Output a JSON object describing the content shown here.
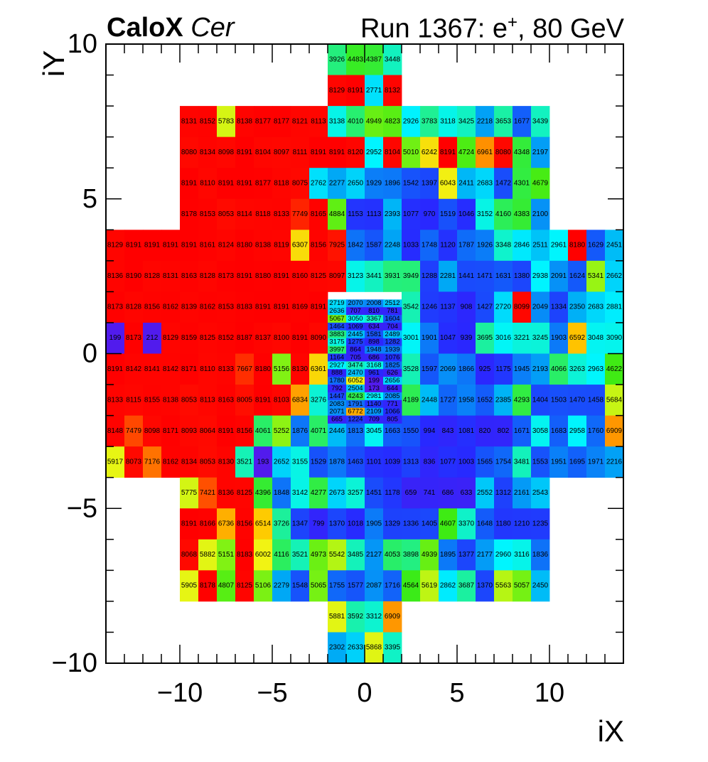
{
  "chart_data": {
    "type": "heatmap",
    "title_bold": "CaloX",
    "title_italic": "Cer",
    "run_label": "Run 1367: e",
    "run_sup": "+",
    "run_energy": ", 80 GeV",
    "xlabel": "iX",
    "ylabel": "iY",
    "xlim": [
      -14,
      14
    ],
    "ylim": [
      -10,
      10
    ],
    "xticks": [
      -10,
      -5,
      0,
      5,
      10
    ],
    "yticks": [
      -10,
      -5,
      0,
      5,
      10
    ],
    "xtick_labels": [
      "−10",
      "−5",
      "0",
      "5",
      "10"
    ],
    "ytick_labels": [
      "−10",
      "−5",
      "0",
      "5",
      "10"
    ],
    "zmax": 8191,
    "grid": false,
    "legend": "none",
    "colormap": "rainbow (blue → cyan → green → yellow → red)",
    "rows": [
      {
        "y": 9,
        "x0": -2,
        "dx": 1,
        "dy": 1,
        "values": [
          3926,
          4483,
          4387,
          3448
        ]
      },
      {
        "y": 8,
        "x0": -2,
        "dx": 1,
        "dy": 1,
        "values": [
          8129,
          8191,
          2771,
          8132
        ]
      },
      {
        "y": 7,
        "x0": -10,
        "dx": 1,
        "dy": 1,
        "values": [
          8131,
          8152,
          5783,
          8138,
          8177,
          8177,
          8121,
          8113,
          3138,
          4010,
          4949,
          4823,
          2926,
          3783,
          3118,
          3425,
          2218,
          3653,
          1677,
          3439
        ]
      },
      {
        "y": 6,
        "x0": -10,
        "dx": 1,
        "dy": 1,
        "values": [
          8080,
          8134,
          8098,
          8191,
          8104,
          8097,
          8111,
          8191,
          8191,
          8120,
          2952,
          8104,
          5010,
          6242,
          8191,
          4724,
          6961,
          8080,
          4348,
          2197
        ]
      },
      {
        "y": 5,
        "x0": -10,
        "dx": 1,
        "dy": 1,
        "values": [
          8191,
          8110,
          8191,
          8191,
          8177,
          8118,
          8075,
          2762,
          2277,
          2650,
          1929,
          1896,
          1542,
          1397,
          6043,
          2411,
          2683,
          1472,
          4301,
          4679
        ]
      },
      {
        "y": 4,
        "x0": -10,
        "dx": 1,
        "dy": 1,
        "values": [
          8178,
          8153,
          8053,
          8114,
          8118,
          8133,
          7749,
          8165,
          4884,
          1153,
          1113,
          2393,
          1077,
          970,
          1519,
          1046,
          3152,
          4160,
          4383,
          2100
        ]
      },
      {
        "y": 3,
        "x0": -14,
        "dx": 1,
        "dy": 1,
        "values": [
          8129,
          8191,
          8191,
          8191,
          8191,
          8161,
          8124,
          8180,
          8138,
          8119,
          6307,
          8156,
          7925,
          1842,
          1587,
          2248,
          1033,
          1748,
          1120,
          1787,
          1926,
          3348,
          2846,
          2511,
          2961,
          8180,
          1629,
          2451
        ]
      },
      {
        "y": 2,
        "x0": -14,
        "dx": 1,
        "dy": 1,
        "values": [
          8136,
          8190,
          8128,
          8131,
          8163,
          8128,
          8173,
          8191,
          8180,
          8191,
          8160,
          8125,
          8097,
          3123,
          3441,
          3931,
          3949,
          1288,
          2281,
          1441,
          1471,
          1631,
          1380,
          2938,
          2091,
          1624,
          5341,
          2662
        ]
      },
      {
        "y": 1,
        "x0": -14,
        "dx": 1,
        "dy": 1,
        "values": [
          8173,
          8128,
          8156,
          8162,
          8139,
          8162,
          8153,
          8183,
          8191,
          8191,
          8169,
          8191
        ]
      },
      {
        "y": 1,
        "x0": 2,
        "dx": 1,
        "dy": 1,
        "values": [
          3542,
          1246,
          1137,
          908,
          1427,
          2720,
          8099,
          2049,
          1334,
          2350,
          2683,
          2881
        ]
      },
      {
        "y": 0,
        "x0": -14,
        "dx": 1,
        "dy": 1,
        "values": [
          199,
          8173,
          212,
          8129,
          8159,
          8125,
          8152,
          8187,
          8137,
          8100,
          8191,
          8090
        ]
      },
      {
        "y": 0,
        "x0": 2,
        "dx": 1,
        "dy": 1,
        "values": [
          3001,
          1901,
          1047,
          939,
          3695,
          3016,
          3221,
          3245,
          1903,
          6592,
          3048,
          3090
        ]
      },
      {
        "y": -1,
        "x0": -14,
        "dx": 1,
        "dy": 1,
        "values": [
          8191,
          8142,
          8141,
          8142,
          8171,
          8110,
          8133,
          7667,
          8180,
          5156,
          8130,
          6361
        ]
      },
      {
        "y": -1,
        "x0": 2,
        "dx": 1,
        "dy": 1,
        "values": [
          3528,
          1597,
          2069,
          1866,
          925,
          1175,
          1945,
          2193,
          4066,
          3263,
          2963,
          4622
        ]
      },
      {
        "y": -2,
        "x0": -14,
        "dx": 1,
        "dy": 1,
        "values": [
          8133,
          8115,
          8155,
          8138,
          8053,
          8113,
          8163,
          8005,
          8191,
          8103,
          6834,
          3276
        ]
      },
      {
        "y": -2,
        "x0": 2,
        "dx": 1,
        "dy": 1,
        "values": [
          4189,
          2448,
          1727,
          1958,
          1652,
          2385,
          4293,
          1404,
          1503,
          1470,
          1458,
          5684
        ]
      },
      {
        "y": -3,
        "x0": -14,
        "dx": 1,
        "dy": 1,
        "values": [
          8148,
          7479,
          8098,
          8171,
          8093,
          8064,
          8191,
          8156,
          4061,
          5252,
          1876,
          4071,
          2446,
          1813,
          3045,
          1663,
          1550,
          994,
          843,
          1081,
          820,
          802,
          1671,
          3058,
          1683,
          2958,
          1760,
          6909
        ]
      },
      {
        "y": -4,
        "x0": -14,
        "dx": 1,
        "dy": 1,
        "values": [
          5917,
          8073,
          7176,
          8162,
          8134,
          8053,
          8130,
          3521,
          193,
          2652,
          3155,
          1529,
          1878,
          1463,
          1101,
          1039,
          1313,
          836,
          1077,
          1003,
          1565,
          1754,
          3481,
          1553,
          1951,
          1695,
          1971,
          2216
        ]
      },
      {
        "y": -5,
        "x0": -10,
        "dx": 1,
        "dy": 1,
        "values": [
          5775,
          7421,
          8136,
          8125,
          4396,
          1848,
          3142,
          4277,
          2673,
          3257,
          1451,
          1178,
          659,
          741,
          686,
          633,
          2552,
          1312,
          2161,
          2543
        ]
      },
      {
        "y": -6,
        "x0": -10,
        "dx": 1,
        "dy": 1,
        "values": [
          8191,
          8166,
          6736,
          8156,
          6514,
          3726,
          1347,
          799,
          1370,
          1018,
          1905,
          1329,
          1336,
          1405,
          4607,
          3370,
          1648,
          1180,
          1210,
          1235
        ]
      },
      {
        "y": -7,
        "x0": -10,
        "dx": 1,
        "dy": 1,
        "values": [
          8068,
          5882,
          5151,
          8183,
          6002,
          4116,
          3521,
          4973,
          5542,
          3485,
          2127,
          4053,
          3898,
          4939,
          1895,
          1377,
          2177,
          2960,
          3116,
          1836
        ]
      },
      {
        "y": -8,
        "x0": -10,
        "dx": 1,
        "dy": 1,
        "values": [
          5905,
          8178,
          4807,
          8125,
          5106,
          2279,
          1548,
          5065,
          1755,
          1577,
          2087,
          1716,
          4564,
          5619,
          2862,
          3687,
          1370,
          5563,
          5057,
          2450
        ]
      },
      {
        "y": -9,
        "x0": -2,
        "dx": 1,
        "dy": 1,
        "values": [
          5881,
          3592,
          3312,
          6909
        ]
      },
      {
        "y": -10,
        "x0": -2,
        "dx": 1,
        "dy": 1,
        "values": [
          2302,
          2633,
          5868,
          3395
        ]
      },
      {
        "y": 1.5,
        "x0": -2,
        "dx": 1,
        "dy": 0.25,
        "values": [
          2719,
          2070,
          2008,
          2512
        ]
      },
      {
        "y": 1.25,
        "x0": -2,
        "dx": 1,
        "dy": 0.25,
        "values": [
          2636,
          707,
          810,
          781
        ]
      },
      {
        "y": 1.0,
        "x0": -2,
        "dx": 1,
        "dy": 0.25,
        "values": [
          5067,
          3050,
          3367,
          1604
        ]
      },
      {
        "y": 0.75,
        "x0": -2,
        "dx": 1,
        "dy": 0.25,
        "values": [
          1464,
          1069,
          634,
          704
        ]
      },
      {
        "y": 0.5,
        "x0": -2,
        "dx": 1,
        "dy": 0.25,
        "values": [
          3883,
          2445,
          1581,
          2489
        ]
      },
      {
        "y": 0.25,
        "x0": -2,
        "dx": 1,
        "dy": 0.25,
        "values": [
          3175,
          1275,
          898,
          1282
        ]
      },
      {
        "y": 0.0,
        "x0": -2,
        "dx": 1,
        "dy": 0.25,
        "values": [
          3997,
          864,
          1948,
          1939
        ]
      },
      {
        "y": -0.25,
        "x0": -2,
        "dx": 1,
        "dy": 0.25,
        "values": [
          1164,
          705,
          686,
          1076
        ]
      },
      {
        "y": -0.5,
        "x0": -2,
        "dx": 1,
        "dy": 0.25,
        "values": [
          2927,
          3474,
          3168,
          1825
        ]
      },
      {
        "y": -0.75,
        "x0": -2,
        "dx": 1,
        "dy": 0.25,
        "values": [
          888,
          2470,
          961,
          626
        ]
      },
      {
        "y": -1.0,
        "x0": -2,
        "dx": 1,
        "dy": 0.25,
        "values": [
          1780,
          6052,
          199,
          2656
        ]
      },
      {
        "y": -1.25,
        "x0": -2,
        "dx": 1,
        "dy": 0.25,
        "values": [
          792,
          2504,
          173,
          644
        ]
      },
      {
        "y": -1.5,
        "x0": -2,
        "dx": 1,
        "dy": 0.25,
        "values": [
          1447,
          4243,
          2981,
          2085
        ]
      },
      {
        "y": -1.75,
        "x0": -2,
        "dx": 1,
        "dy": 0.25,
        "values": [
          2083,
          1791,
          1140,
          771
        ]
      },
      {
        "y": -2.0,
        "x0": -2,
        "dx": 1,
        "dy": 0.25,
        "values": [
          2071,
          6772,
          2109,
          1066
        ]
      },
      {
        "y": -2.25,
        "x0": -2,
        "dx": 1,
        "dy": 0.25,
        "values": [
          665,
          1224,
          709,
          805
        ]
      }
    ]
  }
}
